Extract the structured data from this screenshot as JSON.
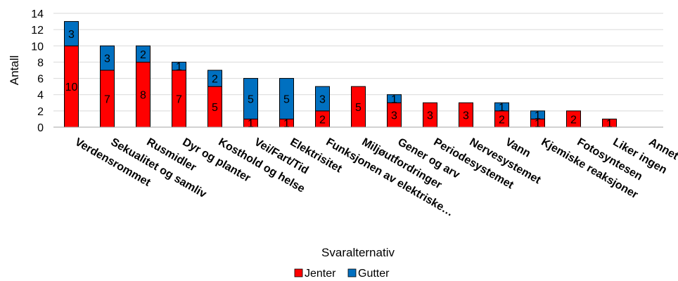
{
  "chart_data": {
    "type": "bar",
    "stacked": true,
    "categories": [
      "Verdensrommet",
      "Sekualitet og samliv",
      "Rusmidler",
      "Dyr og planter",
      "Kosthold og helse",
      "Vei/Fart/Tid",
      "Elektrisitet",
      "Funksjonen av elektriske…",
      "Miljøutfordringer",
      "Gener og arv",
      "Periodesystemet",
      "Nervesystemet",
      "Vann",
      "Kjemiske reaksjoner",
      "Fotosyntesen",
      "Liker ingen",
      "Annet"
    ],
    "series": [
      {
        "name": "Jenter",
        "color": "#ff0000",
        "values": [
          10,
          7,
          8,
          7,
          5,
          1,
          1,
          2,
          5,
          3,
          3,
          3,
          2,
          1,
          2,
          1,
          0
        ]
      },
      {
        "name": "Gutter",
        "color": "#0070c0",
        "values": [
          3,
          3,
          2,
          1,
          2,
          5,
          5,
          3,
          0,
          1,
          0,
          0,
          1,
          1,
          0,
          0,
          0
        ]
      }
    ],
    "ylabel": "Antall",
    "xlabel": "Svaralternativ",
    "ylim": [
      0,
      14
    ],
    "yticks": [
      0,
      2,
      4,
      6,
      8,
      10,
      12,
      14
    ],
    "grid": true,
    "legend": "bottom"
  }
}
